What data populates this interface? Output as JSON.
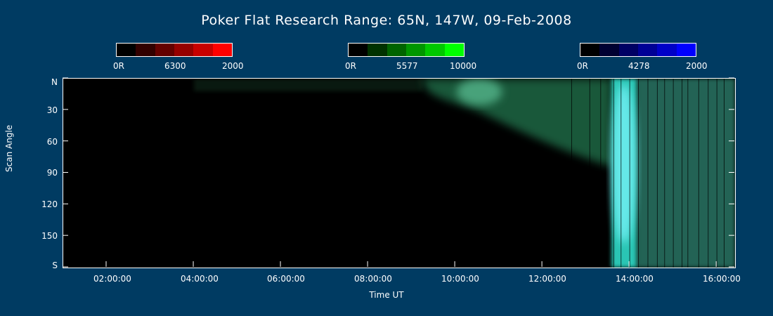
{
  "chart_data": {
    "type": "heatmap",
    "title": "Poker Flat Research Range: 65N, 147W, 09-Feb-2008",
    "xlabel": "Time UT",
    "ylabel": "Scan Angle",
    "x_ticks": [
      "02:00:00",
      "04:00:00",
      "06:00:00",
      "08:00:00",
      "10:00:00",
      "12:00:00",
      "14:00:00",
      "16:00:00"
    ],
    "y_ticks": [
      "N",
      "30",
      "60",
      "90",
      "120",
      "150",
      "S"
    ],
    "x_range": [
      "01:00:00",
      "16:25:00"
    ],
    "y_range": [
      0,
      180
    ],
    "colorbars": [
      {
        "channel": "6300",
        "label_min": "0R",
        "label_mid": "6300",
        "label_max": "2000",
        "colors": [
          "#000000",
          "#320000",
          "#640000",
          "#960000",
          "#c80000",
          "#ff0000"
        ]
      },
      {
        "channel": "5577",
        "label_min": "0R",
        "label_mid": "5577",
        "label_max": "10000",
        "colors": [
          "#000000",
          "#003200",
          "#006400",
          "#009600",
          "#00c800",
          "#00ff00"
        ]
      },
      {
        "channel": "4278",
        "label_min": "0R",
        "label_mid": "4278",
        "label_max": "2000",
        "colors": [
          "#000000",
          "#000032",
          "#000064",
          "#000096",
          "#0000c8",
          "#0000ff"
        ]
      }
    ],
    "activity": [
      {
        "start": "09:15",
        "end": "13:35",
        "extent_from": "N",
        "extent_to": "70",
        "level": "moderate",
        "color": "#2fa06a"
      },
      {
        "start": "13:35",
        "end": "14:10",
        "extent_from": "N",
        "extent_to": "S",
        "level": "intense",
        "color": "#33e8d4"
      },
      {
        "start": "14:10",
        "end": "16:25",
        "extent_from": "N",
        "extent_to": "S",
        "level": "strong",
        "color": "#3aa58e"
      }
    ]
  }
}
